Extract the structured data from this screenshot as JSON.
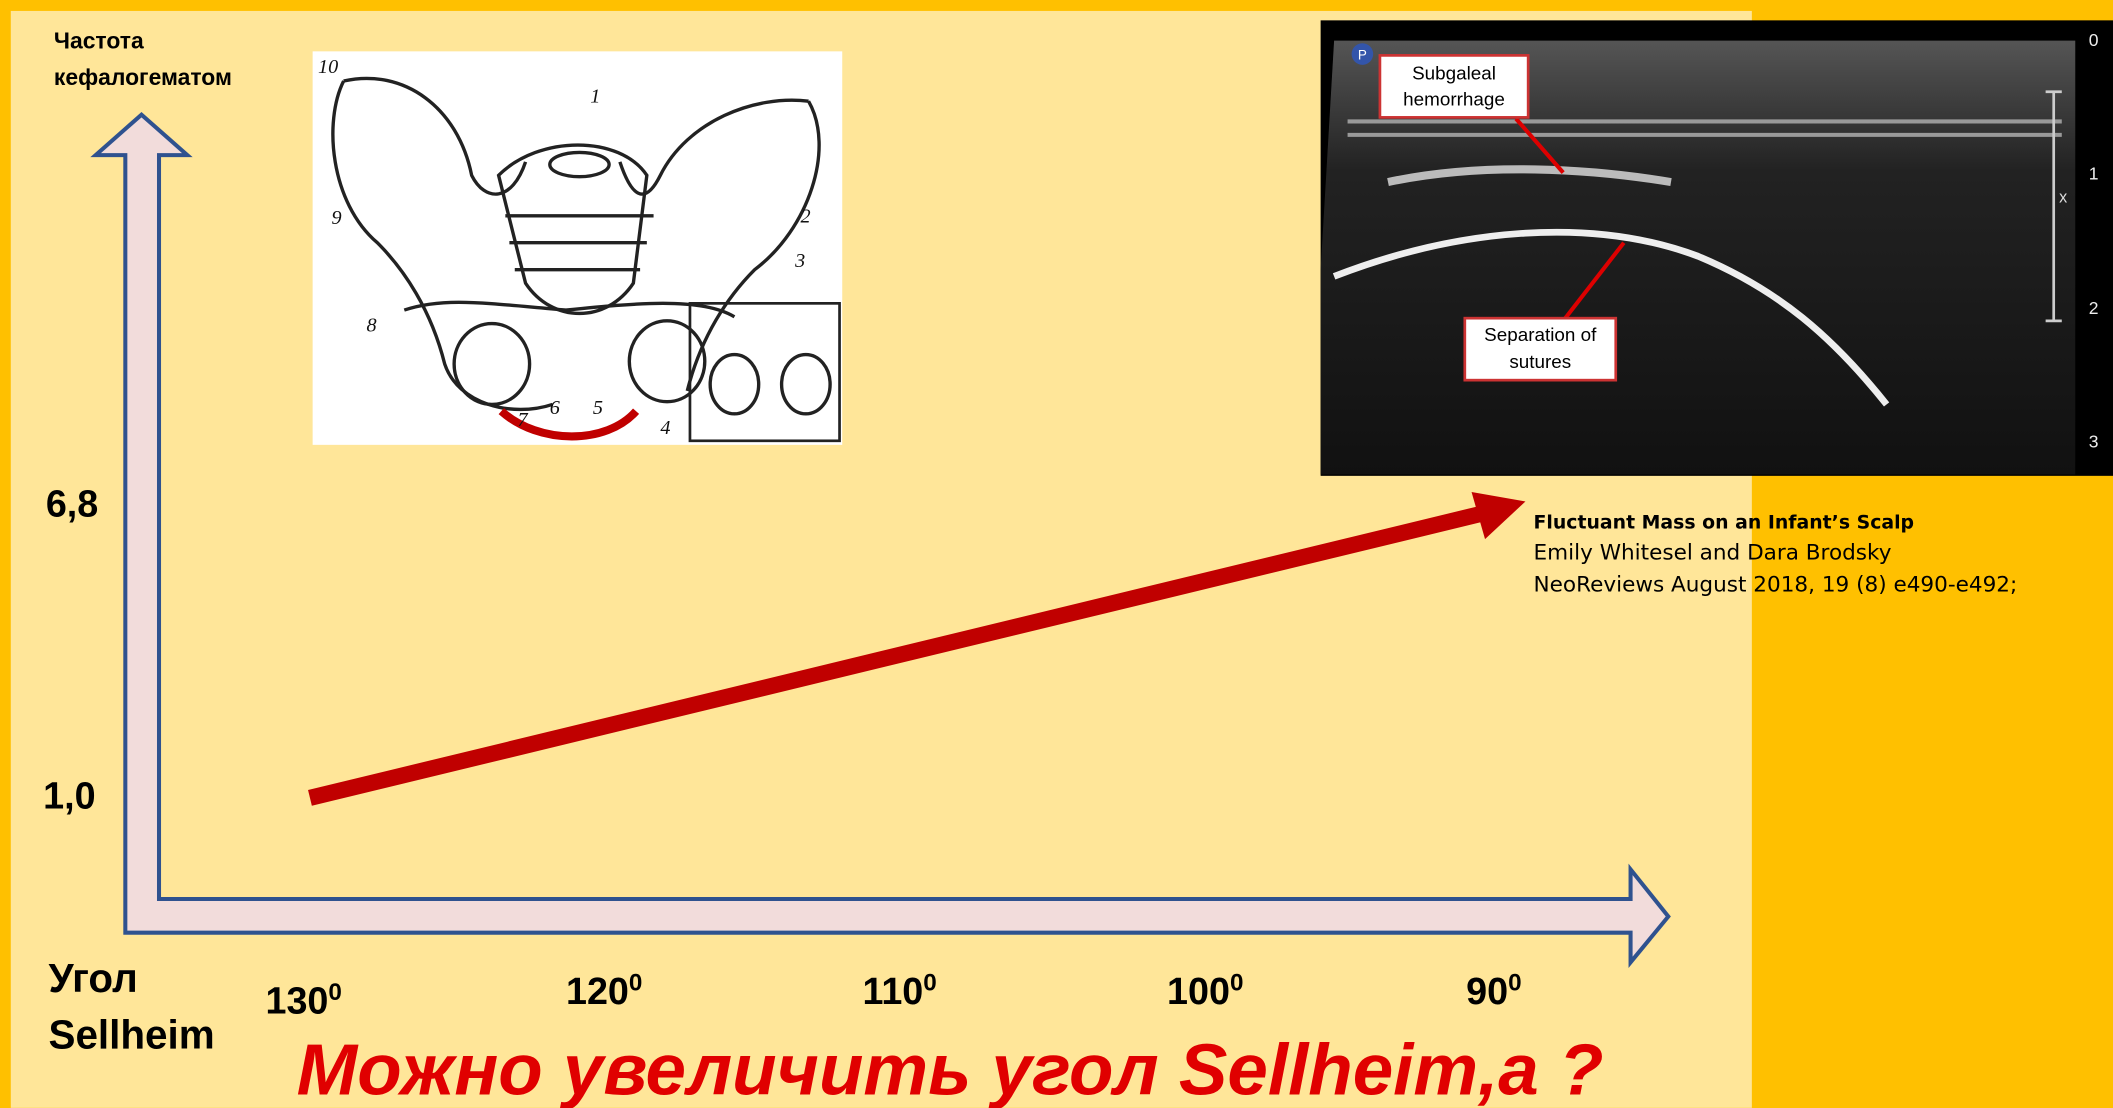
{
  "y_axis": {
    "label": [
      "Частота",
      "кефалогематом"
    ],
    "ticks": [
      "6,8",
      "1,0"
    ]
  },
  "x_axis": {
    "label": [
      "Угол",
      "Sellheim"
    ],
    "ticks": [
      {
        "base": "130",
        "sup": "0"
      },
      {
        "base": "120",
        "sup": "0"
      },
      {
        "base": "110",
        "sup": "0"
      },
      {
        "base": "100",
        "sup": "0"
      },
      {
        "base": "90",
        "sup": "0"
      }
    ]
  },
  "title": "Можно увеличить угол Sellheim,а ?",
  "pelvis": {
    "labels": [
      "1",
      "2",
      "3",
      "4",
      "5",
      "6",
      "7",
      "8",
      "9",
      "10"
    ]
  },
  "ultrasound": {
    "badge": "P",
    "marker": "x",
    "callouts": [
      [
        "Subgaleal",
        "hemorrhage"
      ],
      [
        "Separation of",
        "sutures"
      ]
    ],
    "depth_scale": [
      "0",
      "1",
      "2",
      "3"
    ]
  },
  "citation": {
    "title": "Fluctuant Mass on an Infant’s Scalp",
    "authors": "Emily Whitesel and Dara Brodsky",
    "source": "NeoReviews August 2018, 19 (8) e490-e492;"
  }
}
